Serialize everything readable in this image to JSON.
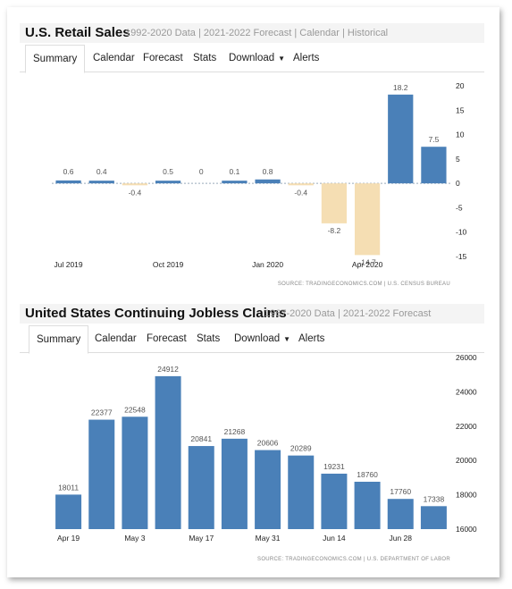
{
  "charts": [
    {
      "title": "U.S. Retail Sales",
      "subtitle": "1992-2020 Data | 2021-2022 Forecast | Calendar | Historical",
      "tabs": [
        "Summary",
        "Calendar",
        "Forecast",
        "Stats",
        "Download",
        "Alerts"
      ],
      "source": "SOURCE: TRADINGECONOMICS.COM | U.S. CENSUS BUREAU"
    },
    {
      "title": "United States Continuing Jobless Claims",
      "subtitle": "1967-2020 Data | 2021-2022 Forecast",
      "tabs": [
        "Summary",
        "Calendar",
        "Forecast",
        "Stats",
        "Download",
        "Alerts"
      ],
      "source": "SOURCE: TRADINGECONOMICS.COM | U.S. DEPARTMENT OF LABOR"
    }
  ],
  "chart_data": [
    {
      "type": "bar",
      "title": "U.S. Retail Sales",
      "values": [
        0.6,
        0.4,
        -0.4,
        0.5,
        0,
        0.1,
        0.8,
        -0.4,
        -8.2,
        -14.7,
        18.2,
        7.5
      ],
      "x_tick_labels": [
        {
          "label": "Jul 2019",
          "index": 0
        },
        {
          "label": "Oct 2019",
          "index": 3
        },
        {
          "label": "Jan 2020",
          "index": 6
        },
        {
          "label": "Apr 2020",
          "index": 9
        }
      ],
      "yticks": [
        20,
        15,
        10,
        5,
        0,
        -5,
        -10,
        -15
      ],
      "ylim": [
        -15,
        20
      ],
      "positive_color": "#4a80b8",
      "negative_color": "#f5deb3"
    },
    {
      "type": "bar",
      "title": "United States Continuing Jobless Claims",
      "values": [
        18011,
        22377,
        22548,
        24912,
        20841,
        21268,
        20606,
        20289,
        19231,
        18760,
        17760,
        17338
      ],
      "x_tick_labels": [
        {
          "label": "Apr 19",
          "index": 0
        },
        {
          "label": "May 3",
          "index": 2
        },
        {
          "label": "May 17",
          "index": 4
        },
        {
          "label": "May 31",
          "index": 6
        },
        {
          "label": "Jun 14",
          "index": 8
        },
        {
          "label": "Jun 28",
          "index": 10
        }
      ],
      "yticks": [
        26000,
        24000,
        22000,
        20000,
        18000,
        16000
      ],
      "ylim": [
        16000,
        26000
      ],
      "bar_color": "#4a80b8"
    }
  ]
}
